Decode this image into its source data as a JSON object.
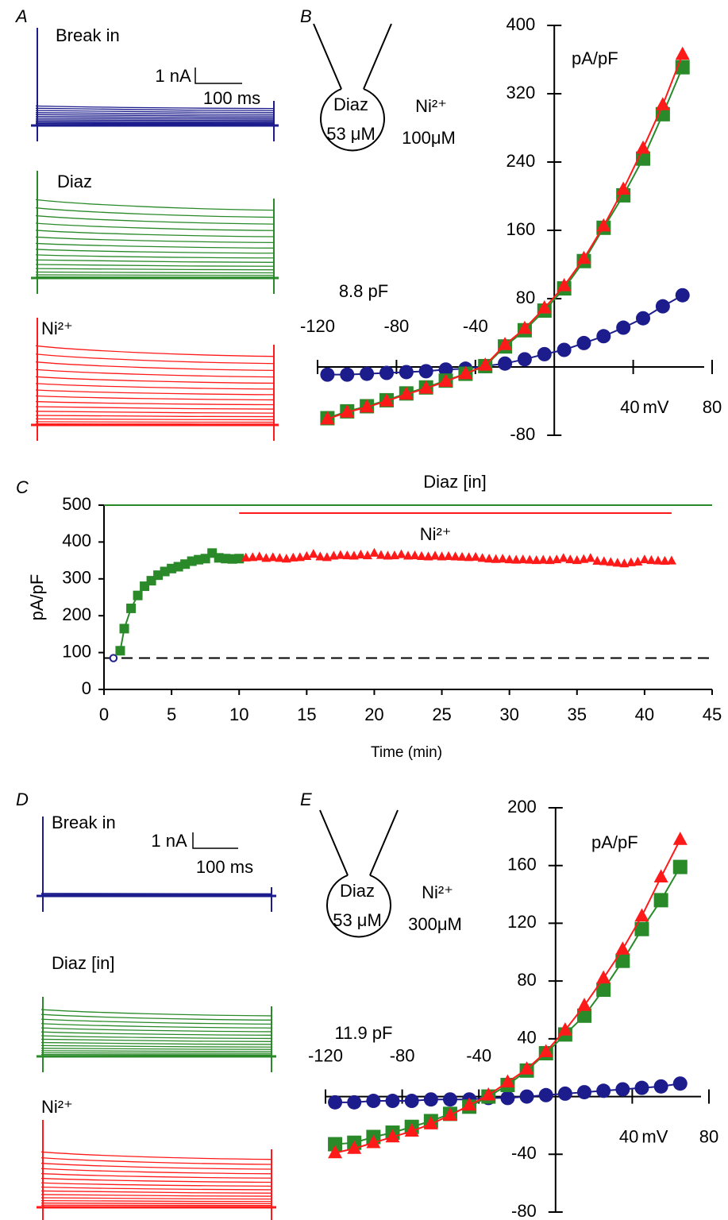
{
  "chart_data": [
    {
      "type": "traces",
      "panel": "A",
      "groups": [
        {
          "name": "Break in",
          "color": "#1c1c8c"
        },
        {
          "name": "Diaz",
          "color": "#2a8a2a"
        },
        {
          "name": "Ni²⁺",
          "color": "#ff1a1a"
        }
      ],
      "scale_current": "1 nA",
      "scale_time": "100 ms"
    },
    {
      "type": "iv",
      "panel": "B",
      "capacitance": "8.8 pF",
      "y_label": "pA/pF",
      "x_unit": "mV",
      "pipette": "Diaz",
      "pipette_conc": "53 μM",
      "bath": "Ni²⁺",
      "bath_conc": "100μM",
      "x": [
        -115,
        -105,
        -95,
        -85,
        -75,
        -65,
        -55,
        -45,
        -35,
        -25,
        -15,
        -5,
        5,
        15,
        25,
        35,
        45,
        55,
        65
      ],
      "xlim": [
        -120,
        80
      ],
      "xticks": [
        -120,
        -80,
        -40,
        40,
        80
      ],
      "ylim": [
        -80,
        400
      ],
      "yticks": [
        400,
        320,
        240,
        160,
        80,
        -80
      ],
      "series": [
        {
          "color": "#1c1c8c",
          "marker": "circle",
          "values": [
            -9,
            -9,
            -8,
            -7,
            -6,
            -5,
            -3,
            -2,
            1,
            4,
            9,
            15,
            20,
            28,
            36,
            46,
            57,
            71,
            84
          ]
        },
        {
          "color": "#2a8a2a",
          "marker": "square",
          "values": [
            -60,
            -52,
            -46,
            -39,
            -31,
            -24,
            -16,
            -8,
            1,
            24,
            43,
            66,
            92,
            124,
            163,
            201,
            244,
            296,
            351
          ]
        },
        {
          "color": "#ff1a1a",
          "marker": "triangle",
          "values": [
            -61,
            -53,
            -47,
            -40,
            -32,
            -25,
            -17,
            -8,
            2,
            26,
            45,
            69,
            95,
            127,
            165,
            208,
            256,
            307,
            366
          ]
        }
      ]
    },
    {
      "type": "timecourse",
      "panel": "C",
      "y_label": "pA/pF",
      "x_label": "Time (min)",
      "xlim": [
        0,
        45
      ],
      "xticks": [
        0,
        5,
        10,
        15,
        20,
        25,
        30,
        35,
        40,
        45
      ],
      "ylim": [
        0,
        500
      ],
      "yticks": [
        0,
        100,
        200,
        300,
        400,
        500
      ],
      "baseline": 85,
      "periods": [
        {
          "label": "Diaz [in]",
          "color": "#2a8a2a",
          "start": 0,
          "end": 45
        },
        {
          "label": "Ni²⁺",
          "color": "#ff1a1a",
          "start": 10,
          "end": 42
        }
      ],
      "series": [
        {
          "color": "#1c1c8c",
          "marker": "circle-open",
          "x": [
            0.7
          ],
          "values": [
            85
          ]
        },
        {
          "color": "#2a8a2a",
          "marker": "square",
          "line": true,
          "x": [
            1.2,
            1.5,
            2,
            2.5,
            3,
            3.5,
            4,
            4.5,
            5,
            5.5,
            6,
            6.5,
            7,
            7.5,
            8,
            8.5,
            9,
            9.5,
            10
          ],
          "values": [
            105,
            165,
            220,
            255,
            280,
            295,
            310,
            320,
            328,
            333,
            340,
            348,
            352,
            355,
            370,
            357,
            355,
            354,
            355
          ]
        },
        {
          "color": "#ff1a1a",
          "marker": "triangle",
          "line": false,
          "x": [
            10.5,
            11,
            11.5,
            12,
            12.5,
            13,
            13.5,
            14,
            14.5,
            15,
            15.5,
            16,
            16.5,
            17,
            17.5,
            18,
            18.5,
            19,
            19.5,
            20,
            20.5,
            21,
            21.5,
            22,
            22.5,
            23,
            23.5,
            24,
            24.5,
            25,
            25.5,
            26,
            26.5,
            27,
            27.5,
            28,
            28.5,
            29,
            29.5,
            30,
            30.5,
            31,
            31.5,
            32,
            32.5,
            33,
            33.5,
            34,
            34.5,
            35,
            35.5,
            36,
            36.5,
            37,
            37.5,
            38,
            38.5,
            39,
            39.5,
            40,
            40.5,
            41,
            41.5,
            42
          ],
          "values": [
            357,
            358,
            360,
            356,
            358,
            356,
            354,
            357,
            358,
            361,
            367,
            360,
            358,
            362,
            364,
            363,
            362,
            365,
            363,
            370,
            364,
            362,
            363,
            366,
            362,
            363,
            361,
            360,
            362,
            360,
            361,
            360,
            359,
            358,
            359,
            356,
            354,
            353,
            354,
            352,
            351,
            352,
            351,
            350,
            351,
            350,
            352,
            356,
            352,
            350,
            353,
            356,
            348,
            347,
            345,
            343,
            341,
            344,
            346,
            352,
            350,
            349,
            348,
            349
          ]
        }
      ]
    },
    {
      "type": "traces",
      "panel": "D",
      "groups": [
        {
          "name": "Break in",
          "color": "#1c1c8c"
        },
        {
          "name": "Diaz [in]",
          "color": "#2a8a2a"
        },
        {
          "name": "Ni²⁺",
          "color": "#ff1a1a"
        }
      ],
      "scale_current": "1 nA",
      "scale_time": "100 ms"
    },
    {
      "type": "iv",
      "panel": "E",
      "capacitance": "11.9 pF",
      "y_label": "pA/pF",
      "x_unit": "mV",
      "pipette": "Diaz",
      "pipette_conc": "53 μM",
      "bath": "Ni²⁺",
      "bath_conc": "300μM",
      "x": [
        -115,
        -105,
        -95,
        -85,
        -75,
        -65,
        -55,
        -45,
        -35,
        -25,
        -15,
        -5,
        5,
        15,
        25,
        35,
        45,
        55,
        65
      ],
      "xlim": [
        -120,
        80
      ],
      "xticks": [
        -120,
        -80,
        -40,
        40,
        80
      ],
      "ylim": [
        -80,
        200
      ],
      "yticks": [
        200,
        160,
        120,
        80,
        40,
        -40,
        -80
      ],
      "series": [
        {
          "color": "#1c1c8c",
          "marker": "circle",
          "values": [
            -4,
            -4,
            -3,
            -3,
            -3,
            -2,
            -2,
            -2,
            -1,
            -1,
            0,
            1,
            2,
            3,
            4,
            5,
            6,
            7,
            9
          ]
        },
        {
          "color": "#2a8a2a",
          "marker": "square",
          "values": [
            -33,
            -32,
            -28,
            -25,
            -21,
            -17,
            -12,
            -7,
            0,
            8,
            18,
            30,
            43,
            56,
            74,
            94,
            116,
            136,
            159
          ]
        },
        {
          "color": "#ff1a1a",
          "marker": "triangle",
          "values": [
            -39,
            -36,
            -32,
            -28,
            -24,
            -19,
            -13,
            -6,
            1,
            10,
            19,
            31,
            46,
            63,
            82,
            102,
            125,
            152,
            178
          ]
        }
      ]
    }
  ]
}
